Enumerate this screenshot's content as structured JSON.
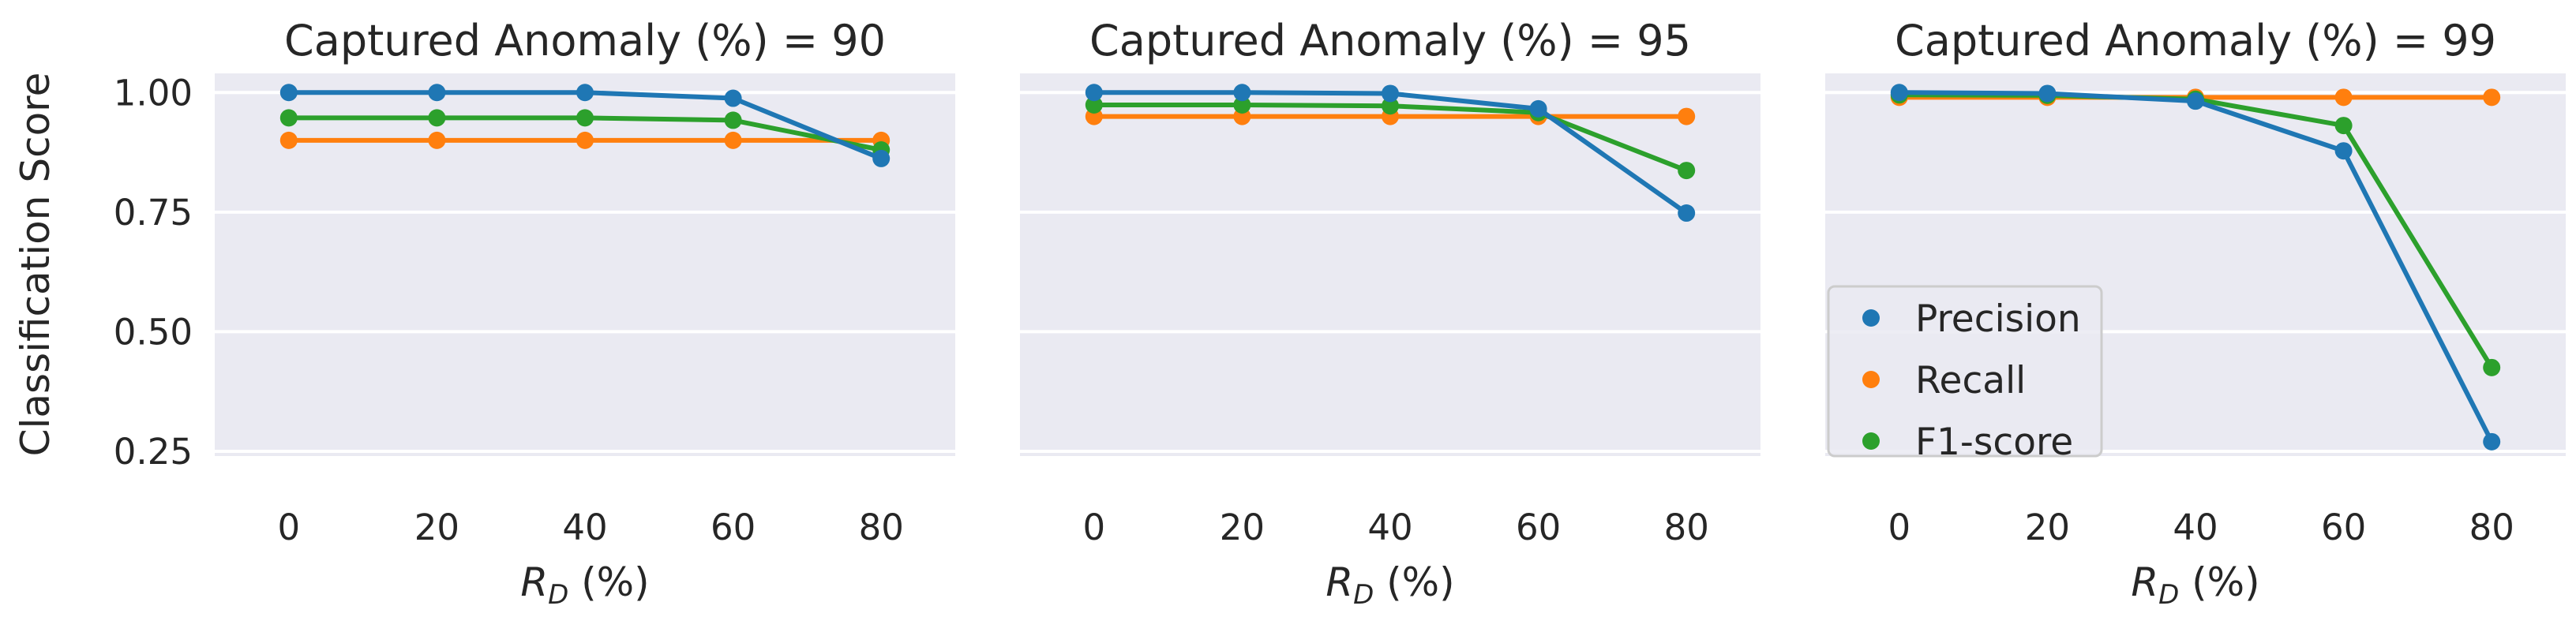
{
  "chart_data": {
    "type": "line",
    "ylabel": "Classification Score",
    "xlabel_main": "R",
    "xlabel_sub": "D",
    "xlabel_suffix": " (%)",
    "x": [
      0,
      20,
      40,
      60,
      80
    ],
    "xlim": [
      -10,
      90
    ],
    "ylim": [
      0.24,
      1.04
    ],
    "yticks": [
      0.25,
      0.5,
      0.75,
      1.0
    ],
    "ytick_labels": [
      "0.25",
      "0.50",
      "0.75",
      "1.00"
    ],
    "grid": true,
    "colors": {
      "Precision": "#1f77b4",
      "Recall": "#ff7f0e",
      "F1-score": "#2ca02c"
    },
    "legend": {
      "placement": "lower-left of third panel",
      "entries": [
        "Precision",
        "Recall",
        "F1-score"
      ]
    },
    "panels": [
      {
        "title": "Captured Anomaly (%) = 90",
        "series": [
          {
            "name": "Precision",
            "values": [
              1.0,
              1.0,
              1.0,
              0.988,
              0.862
            ]
          },
          {
            "name": "Recall",
            "values": [
              0.9,
              0.9,
              0.9,
              0.9,
              0.9
            ]
          },
          {
            "name": "F1-score",
            "values": [
              0.947,
              0.947,
              0.947,
              0.942,
              0.88
            ]
          }
        ]
      },
      {
        "title": "Captured Anomaly (%) = 95",
        "series": [
          {
            "name": "Precision",
            "values": [
              1.0,
              1.0,
              0.998,
              0.966,
              0.748
            ]
          },
          {
            "name": "Recall",
            "values": [
              0.95,
              0.95,
              0.95,
              0.95,
              0.95
            ]
          },
          {
            "name": "F1-score",
            "values": [
              0.974,
              0.974,
              0.972,
              0.958,
              0.837
            ]
          }
        ]
      },
      {
        "title": "Captured Anomaly (%) = 99",
        "series": [
          {
            "name": "Precision",
            "values": [
              1.0,
              0.998,
              0.982,
              0.878,
              0.27
            ]
          },
          {
            "name": "Recall",
            "values": [
              0.99,
              0.99,
              0.99,
              0.99,
              0.99
            ]
          },
          {
            "name": "F1-score",
            "values": [
              0.995,
              0.994,
              0.986,
              0.931,
              0.425
            ]
          }
        ]
      }
    ]
  }
}
